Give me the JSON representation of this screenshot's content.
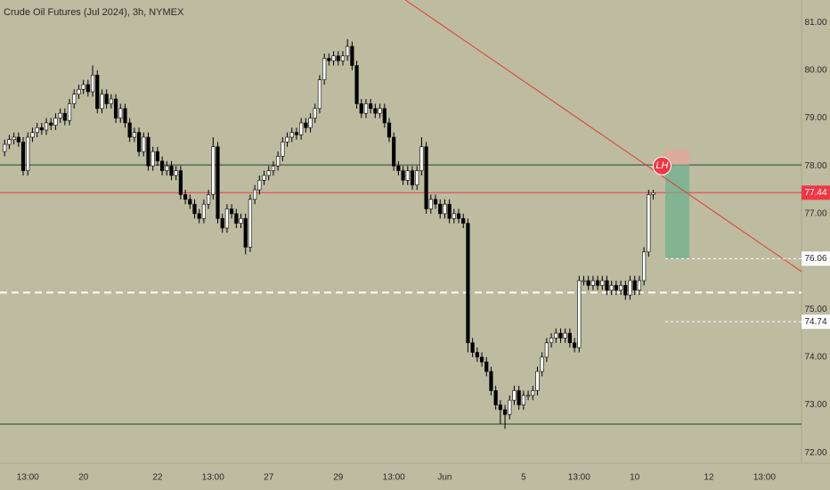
{
  "chart_data": {
    "type": "candlestick",
    "title": "Crude Oil Futures (Jul 2024), 3h, NYMEX",
    "categories": [
      null,
      null,
      null,
      null,
      null,
      "13:00",
      null,
      null,
      null,
      null,
      null,
      null,
      null,
      null,
      null,
      null,
      null,
      "20",
      null,
      null,
      null,
      null,
      null,
      null,
      null,
      null,
      null,
      null,
      null,
      null,
      null,
      null,
      null,
      "22",
      null,
      null,
      null,
      null,
      null,
      null,
      null,
      null,
      null,
      null,
      null,
      "13:00",
      null,
      null,
      null,
      null,
      null,
      null,
      null,
      null,
      null,
      null,
      null,
      "27",
      null,
      null,
      null,
      null,
      null,
      null,
      null,
      null,
      null,
      null,
      null,
      null,
      null,
      null,
      "29",
      null,
      null,
      null,
      null,
      null,
      null,
      null,
      null,
      null,
      null,
      null,
      "13:00",
      null,
      null,
      null,
      null,
      null,
      null,
      null,
      null,
      null,
      null,
      "Jun",
      null,
      null,
      null,
      null,
      null,
      null,
      null,
      null,
      null,
      null,
      null,
      null,
      null,
      null,
      null,
      null,
      "5",
      null,
      null,
      null,
      null,
      null,
      null,
      null,
      null,
      null,
      null,
      null,
      "13:00",
      null,
      null,
      null,
      null,
      null,
      null,
      null,
      null,
      null,
      null,
      null,
      "10",
      null,
      null,
      null,
      null,
      null,
      null,
      null,
      null,
      null,
      null,
      null,
      null,
      null,
      null,
      null,
      "12",
      null,
      null,
      null,
      null,
      null,
      null,
      null,
      null,
      null,
      null,
      null,
      "13:00",
      null,
      null,
      null,
      null,
      null,
      null,
      null
    ],
    "open": [
      78.3,
      78.45,
      78.55,
      78.6,
      78.5,
      77.9,
      78.6,
      78.7,
      78.8,
      78.75,
      78.9,
      78.85,
      79.0,
      79.1,
      78.95,
      79.3,
      79.5,
      79.6,
      79.7,
      79.55,
      79.9,
      79.2,
      79.5,
      79.3,
      79.4,
      79.0,
      79.2,
      78.9,
      78.6,
      78.7,
      78.3,
      78.6,
      78.0,
      78.3,
      78.1,
      77.9,
      78.0,
      77.8,
      77.9,
      77.4,
      77.3,
      77.2,
      77.0,
      76.9,
      77.2,
      77.4,
      78.4,
      76.9,
      76.7,
      77.1,
      77.0,
      76.8,
      76.9,
      76.3,
      77.3,
      77.5,
      77.7,
      77.8,
      77.9,
      78.0,
      78.2,
      78.5,
      78.6,
      78.7,
      78.65,
      78.9,
      78.8,
      79.0,
      79.2,
      79.8,
      80.25,
      80.2,
      80.3,
      80.2,
      80.3,
      80.5,
      80.1,
      79.3,
      79.1,
      79.3,
      79.2,
      79.1,
      79.2,
      78.9,
      78.6,
      78.0,
      77.9,
      77.7,
      77.9,
      77.6,
      77.9,
      78.4,
      77.1,
      77.3,
      77.2,
      77.0,
      77.2,
      76.9,
      77.0,
      76.9,
      76.8,
      74.3,
      74.1,
      74.0,
      73.9,
      73.7,
      73.3,
      73.0,
      72.9,
      72.8,
      73.1,
      73.3,
      73.0,
      73.2,
      73.2,
      73.3,
      73.7,
      74.0,
      74.3,
      74.4,
      74.5,
      74.4,
      74.5,
      74.3,
      74.2,
      75.6,
      75.6,
      75.5,
      75.6,
      75.5,
      75.6,
      75.4,
      75.5,
      75.4,
      75.5,
      75.3,
      75.6,
      75.4,
      75.6,
      76.2,
      77.4,
      null,
      null,
      null,
      null,
      null,
      null,
      null,
      null,
      null,
      null,
      null,
      null,
      null,
      null,
      null,
      null,
      null,
      null,
      null,
      null,
      null,
      null,
      null,
      null,
      null,
      null,
      null,
      null,
      null,
      null,
      null
    ],
    "high": [
      78.55,
      78.65,
      78.7,
      78.7,
      78.6,
      78.7,
      78.8,
      78.9,
      78.9,
      79.0,
      79.0,
      79.1,
      79.2,
      79.2,
      79.4,
      79.6,
      79.7,
      79.8,
      79.8,
      80.1,
      80.0,
      79.6,
      79.6,
      79.5,
      79.5,
      79.3,
      79.3,
      79.0,
      78.8,
      78.8,
      78.7,
      78.7,
      78.4,
      78.4,
      78.2,
      78.1,
      78.1,
      78.0,
      78.0,
      77.5,
      77.4,
      77.3,
      77.1,
      77.3,
      77.5,
      78.6,
      78.5,
      77.0,
      77.2,
      77.2,
      77.1,
      77.0,
      77.0,
      77.4,
      77.6,
      77.8,
      77.9,
      78.0,
      78.1,
      78.3,
      78.6,
      78.7,
      78.8,
      78.8,
      79.0,
      79.0,
      79.1,
      79.3,
      79.9,
      80.35,
      80.35,
      80.4,
      80.4,
      80.4,
      80.65,
      80.6,
      80.2,
      79.4,
      79.4,
      79.4,
      79.3,
      79.3,
      79.3,
      79.0,
      78.7,
      78.1,
      78.0,
      78.0,
      78.0,
      78.0,
      78.6,
      78.5,
      77.4,
      77.4,
      77.3,
      77.3,
      77.3,
      77.1,
      77.1,
      77.0,
      76.9,
      74.4,
      74.2,
      74.1,
      74.0,
      73.8,
      73.4,
      73.1,
      73.0,
      73.2,
      73.4,
      73.4,
      73.3,
      73.3,
      73.4,
      73.8,
      74.1,
      74.4,
      74.5,
      74.6,
      74.6,
      74.6,
      74.6,
      74.4,
      75.7,
      75.7,
      75.7,
      75.7,
      75.7,
      75.7,
      75.7,
      75.6,
      75.6,
      75.6,
      75.6,
      75.7,
      75.7,
      75.7,
      76.3,
      77.5,
      77.5,
      null,
      null,
      null,
      null,
      null,
      null,
      null,
      null,
      null,
      null,
      null,
      null,
      null,
      null,
      null,
      null,
      null,
      null,
      null,
      null,
      null,
      null,
      null,
      null,
      null,
      null,
      null,
      null,
      null,
      null,
      null
    ],
    "low": [
      78.2,
      78.35,
      78.45,
      78.4,
      77.8,
      77.8,
      78.5,
      78.6,
      78.65,
      78.65,
      78.75,
      78.75,
      78.9,
      78.85,
      78.85,
      79.2,
      79.4,
      79.5,
      79.45,
      79.45,
      79.1,
      79.1,
      79.2,
      79.2,
      78.9,
      78.9,
      78.8,
      78.5,
      78.5,
      78.2,
      78.2,
      77.9,
      77.9,
      78.0,
      77.8,
      77.8,
      77.7,
      77.7,
      77.3,
      77.2,
      77.1,
      76.9,
      76.8,
      76.8,
      77.1,
      77.3,
      76.8,
      76.6,
      76.6,
      76.9,
      76.7,
      76.7,
      76.15,
      76.2,
      77.2,
      77.4,
      77.6,
      77.7,
      77.8,
      77.9,
      78.1,
      78.4,
      78.5,
      78.55,
      78.55,
      78.7,
      78.7,
      78.9,
      79.1,
      79.7,
      80.1,
      80.1,
      80.1,
      80.1,
      80.2,
      80.0,
      79.2,
      79.0,
      79.0,
      79.1,
      79.0,
      79.0,
      78.8,
      78.5,
      77.9,
      77.8,
      77.6,
      77.6,
      77.5,
      77.5,
      77.8,
      77.0,
      77.0,
      77.1,
      76.9,
      76.9,
      76.8,
      76.8,
      76.8,
      76.7,
      74.1,
      74.0,
      73.9,
      73.8,
      73.6,
      73.2,
      72.9,
      72.6,
      72.5,
      72.7,
      73.0,
      72.9,
      72.9,
      73.1,
      73.1,
      73.2,
      73.6,
      73.9,
      74.2,
      74.3,
      74.3,
      74.3,
      74.2,
      74.1,
      74.1,
      75.5,
      75.4,
      75.4,
      75.4,
      75.4,
      75.3,
      75.3,
      75.3,
      75.3,
      75.2,
      75.2,
      75.3,
      75.3,
      75.5,
      76.1,
      77.3,
      null,
      null,
      null,
      null,
      null,
      null,
      null,
      null,
      null,
      null,
      null,
      null,
      null,
      null,
      null,
      null,
      null,
      null,
      null,
      null,
      null,
      null,
      null,
      null,
      null,
      null,
      null,
      null,
      null,
      null,
      null
    ],
    "close": [
      78.45,
      78.55,
      78.6,
      78.5,
      77.9,
      78.6,
      78.7,
      78.8,
      78.75,
      78.9,
      78.85,
      79.0,
      79.1,
      78.95,
      79.3,
      79.5,
      79.6,
      79.7,
      79.55,
      79.9,
      79.2,
      79.5,
      79.3,
      79.4,
      79.0,
      79.2,
      78.9,
      78.6,
      78.7,
      78.3,
      78.6,
      78.0,
      78.3,
      78.1,
      77.9,
      78.0,
      77.8,
      77.9,
      77.4,
      77.3,
      77.2,
      77.0,
      76.9,
      77.2,
      77.4,
      78.4,
      76.9,
      76.7,
      77.1,
      77.0,
      76.8,
      76.9,
      76.3,
      77.3,
      77.5,
      77.7,
      77.8,
      77.9,
      78.0,
      78.2,
      78.5,
      78.6,
      78.7,
      78.65,
      78.9,
      78.8,
      79.0,
      79.2,
      79.8,
      80.25,
      80.2,
      80.3,
      80.2,
      80.3,
      80.5,
      80.1,
      79.3,
      79.1,
      79.3,
      79.2,
      79.1,
      79.2,
      78.9,
      78.6,
      78.0,
      77.9,
      77.7,
      77.9,
      77.6,
      77.9,
      78.4,
      77.1,
      77.3,
      77.2,
      77.0,
      77.2,
      76.9,
      77.0,
      76.9,
      76.8,
      74.3,
      74.1,
      74.0,
      73.9,
      73.7,
      73.3,
      73.0,
      72.9,
      72.8,
      73.1,
      73.3,
      73.0,
      73.2,
      73.2,
      73.3,
      73.7,
      74.0,
      74.3,
      74.4,
      74.5,
      74.4,
      74.5,
      74.3,
      74.2,
      75.6,
      75.6,
      75.5,
      75.6,
      75.5,
      75.6,
      75.4,
      75.5,
      75.4,
      75.5,
      75.3,
      75.6,
      75.4,
      75.6,
      76.2,
      77.4,
      77.44,
      null,
      null,
      null,
      null,
      null,
      null,
      null,
      null,
      null,
      null,
      null,
      null,
      null,
      null,
      null,
      null,
      null,
      null,
      null,
      null,
      null,
      null,
      null,
      null,
      null,
      null,
      null,
      null,
      null,
      null,
      null
    ],
    "up_color": "#ffffff",
    "down_color": "#000000",
    "ylim": [
      71.78,
      81.47
    ],
    "yticks": [
      {
        "value": 72,
        "label": "72.00"
      },
      {
        "value": 73,
        "label": "73.00"
      },
      {
        "value": 74,
        "label": "74.00"
      },
      {
        "value": 75,
        "label": "75.00"
      },
      {
        "value": 76,
        "label": "76.00"
      },
      {
        "value": 77,
        "label": "77.00"
      },
      {
        "value": 78,
        "label": "78.00"
      },
      {
        "value": 79,
        "label": "79.00"
      },
      {
        "value": 80,
        "label": "80.00"
      },
      {
        "value": 81,
        "label": "81.00"
      }
    ],
    "lines": [
      {
        "value": 78.02,
        "color": "#1f4a2a"
      },
      {
        "value": 72.6,
        "color": "#1f4a2a"
      },
      {
        "value": 75.35,
        "color": "#ffffff",
        "style": "dashed"
      },
      {
        "value": 77.44,
        "color": "#f23645"
      }
    ],
    "trendline": {
      "from": [
        86.5,
        81.47
      ],
      "to": [
        172,
        75.79
      ],
      "color": "#e53935"
    },
    "position": {
      "start": 142.6,
      "end": 147.8,
      "entry": 78.02,
      "target": 76.06,
      "stop": 78.35
    },
    "price_labels": [
      {
        "value": 77.44,
        "color": "#f23645",
        "text_color": "#ffffff"
      },
      {
        "value": 76.06,
        "color": "#ffffff",
        "text_color": "#222222"
      },
      {
        "value": 74.74,
        "color": "#ffffff",
        "text_color": "#222222"
      }
    ],
    "marker": {
      "label": "LH",
      "x": 141.9,
      "value": 78.0,
      "color": "#f23645"
    }
  }
}
